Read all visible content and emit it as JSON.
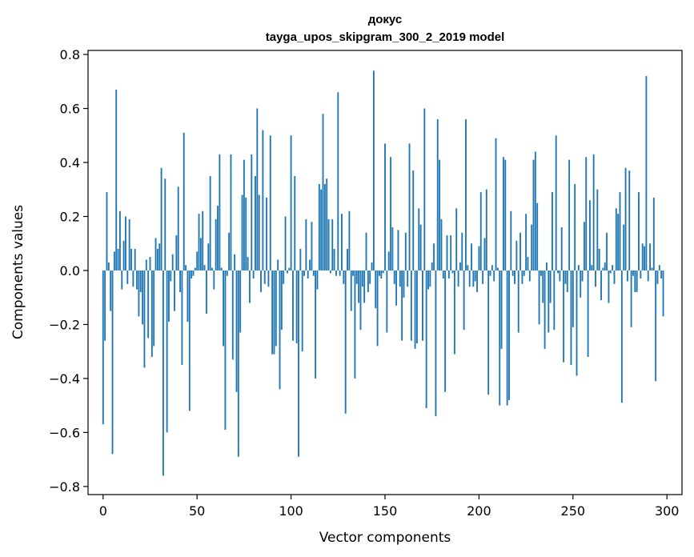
{
  "chart_data": {
    "type": "bar",
    "title": "докус",
    "subtitle": "tayga_upos_skipgram_300_2_2019 model",
    "xlabel": "Vector components",
    "ylabel": "Components values",
    "xlim": [
      -8,
      308
    ],
    "ylim": [
      -0.83,
      0.815
    ],
    "x_ticks": [
      0,
      50,
      100,
      150,
      200,
      250,
      300
    ],
    "y_ticks": [
      -0.8,
      -0.6,
      -0.4,
      -0.2,
      0.0,
      0.2,
      0.4,
      0.6,
      0.8
    ],
    "y_tick_labels": [
      "−0.8",
      "−0.6",
      "−0.4",
      "−0.2",
      "0.0",
      "0.2",
      "0.4",
      "0.6",
      "0.8"
    ],
    "bar_color": "#1f77b4",
    "grid": false,
    "values": [
      -0.57,
      -0.26,
      0.29,
      0.03,
      -0.15,
      -0.68,
      0.07,
      0.67,
      0.08,
      0.22,
      -0.07,
      0.11,
      0.2,
      -0.05,
      0.19,
      0.08,
      -0.06,
      0.08,
      -0.07,
      -0.17,
      -0.08,
      -0.2,
      -0.36,
      0.04,
      -0.25,
      0.05,
      -0.32,
      -0.28,
      0.12,
      0.08,
      0.1,
      0.38,
      -0.76,
      0.34,
      -0.6,
      -0.19,
      -0.04,
      0.06,
      -0.15,
      0.13,
      0.31,
      -0.08,
      -0.35,
      0.51,
      0.02,
      -0.19,
      -0.52,
      -0.03,
      -0.02,
      0.01,
      0.07,
      0.21,
      0.12,
      0.22,
      0.02,
      -0.16,
      0.1,
      0.35,
      0.01,
      -0.07,
      0.19,
      0.24,
      0.43,
      0.01,
      -0.28,
      -0.59,
      -0.02,
      0.14,
      0.43,
      -0.33,
      0.06,
      -0.45,
      -0.69,
      -0.23,
      0.28,
      0.41,
      0.27,
      0.05,
      -0.12,
      0.43,
      -0.03,
      0.35,
      0.6,
      0.28,
      -0.08,
      0.52,
      -0.05,
      0.27,
      -0.06,
      0.5,
      -0.31,
      -0.31,
      -0.28,
      0.04,
      -0.44,
      -0.22,
      -0.05,
      0.2,
      -0.01,
      0.01,
      0.5,
      -0.26,
      0.35,
      -0.27,
      -0.69,
      0.08,
      -0.3,
      -0.02,
      0.19,
      -0.03,
      0.04,
      0.18,
      -0.02,
      -0.4,
      -0.07,
      0.32,
      0.3,
      0.58,
      0.32,
      0.34,
      0.19,
      -0.01,
      0.19,
      0.08,
      -0.02,
      0.66,
      -0.02,
      0.21,
      -0.05,
      -0.53,
      0.08,
      0.22,
      -0.15,
      -0.02,
      -0.4,
      -0.05,
      -0.12,
      -0.22,
      -0.06,
      -0.12,
      0.14,
      -0.08,
      -0.05,
      0.03,
      0.74,
      -0.14,
      -0.28,
      -0.02,
      -0.03,
      -0.01,
      0.47,
      -0.23,
      0.07,
      0.42,
      0.16,
      -0.05,
      -0.13,
      0.15,
      -0.06,
      -0.26,
      -0.1,
      0.14,
      -0.06,
      0.47,
      -0.26,
      0.37,
      -0.29,
      -0.27,
      0.23,
      0.17,
      -0.26,
      0.6,
      -0.51,
      -0.07,
      -0.06,
      0.03,
      0.1,
      -0.54,
      0.56,
      0.41,
      0.19,
      -0.03,
      -0.45,
      0.13,
      -0.03,
      0.13,
      -0.01,
      -0.31,
      0.23,
      -0.06,
      0.03,
      0.14,
      -0.22,
      0.56,
      0.02,
      -0.06,
      0.1,
      -0.06,
      -0.04,
      -0.08,
      0.09,
      0.29,
      -0.05,
      0.12,
      0.3,
      -0.46,
      -0.02,
      0.02,
      -0.04,
      0.49,
      0.01,
      -0.5,
      -0.29,
      0.42,
      0.41,
      -0.5,
      -0.48,
      0.22,
      -0.02,
      -0.05,
      0.11,
      -0.23,
      0.14,
      -0.05,
      -0.02,
      0.21,
      0.05,
      -0.04,
      0.17,
      0.41,
      0.44,
      0.25,
      -0.2,
      -0.02,
      -0.12,
      -0.29,
      0.03,
      -0.23,
      -0.12,
      0.29,
      -0.22,
      0.5,
      -0.01,
      -0.04,
      0.16,
      -0.34,
      -0.05,
      -0.08,
      0.41,
      -0.35,
      -0.21,
      0.32,
      -0.39,
      0.02,
      -0.1,
      -0.04,
      0.18,
      0.42,
      -0.32,
      0.26,
      0.02,
      0.43,
      -0.06,
      0.3,
      0.08,
      -0.11,
      0.01,
      0.03,
      0.14,
      -0.12,
      -0.01,
      0.02,
      -0.05,
      0.23,
      0.21,
      0.29,
      -0.49,
      0.17,
      0.38,
      -0.04,
      0.37,
      -0.21,
      -0.02,
      -0.08,
      -0.08,
      0.29,
      -0.03,
      0.1,
      0.09,
      0.72,
      -0.04,
      0.1,
      0.01,
      0.27,
      -0.41,
      -0.05,
      0.02,
      -0.03,
      -0.17,
      0.0
    ]
  }
}
